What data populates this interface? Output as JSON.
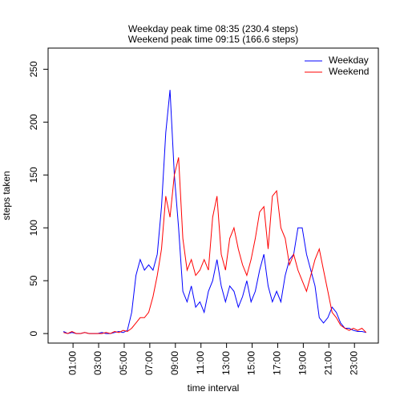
{
  "chart_data": {
    "type": "line",
    "title": "Weekday peak time 08:35 (230.4 steps)",
    "subtitle": "Weekend peak time 09:15 (166.6 steps)",
    "xlabel": "time interval",
    "ylabel": "steps taken",
    "x": [
      15,
      35,
      55,
      75,
      95,
      115,
      135,
      155,
      175,
      195,
      215,
      235,
      255,
      275,
      295,
      315,
      335,
      355,
      375,
      395,
      415,
      435,
      455,
      475,
      495,
      515,
      535,
      555,
      575,
      595,
      615,
      635,
      655,
      675,
      695,
      715,
      735,
      755,
      775,
      795,
      815,
      835,
      855,
      875,
      895,
      915,
      935,
      955,
      975,
      995,
      1015,
      1035,
      1055,
      1075,
      1095,
      1115,
      1135,
      1155,
      1175,
      1195,
      1215,
      1235,
      1255,
      1275,
      1295,
      1315,
      1335,
      1355,
      1375,
      1395,
      1415,
      1435
    ],
    "series": [
      {
        "name": "Weekday",
        "color": "#0000ff",
        "values": [
          2,
          0,
          1,
          0,
          0,
          1,
          0,
          0,
          0,
          1,
          0,
          0,
          1,
          2,
          1,
          3,
          20,
          55,
          70,
          60,
          65,
          60,
          75,
          120,
          190,
          230.4,
          150,
          100,
          40,
          30,
          45,
          25,
          30,
          20,
          40,
          50,
          70,
          45,
          30,
          45,
          40,
          25,
          35,
          50,
          30,
          40,
          60,
          75,
          45,
          30,
          40,
          30,
          55,
          70,
          75,
          100,
          100,
          75,
          60,
          45,
          15,
          10,
          15,
          25,
          20,
          10,
          5,
          5,
          3,
          2,
          2,
          1
        ]
      },
      {
        "name": "Weekend",
        "color": "#ff0000",
        "values": [
          1,
          0,
          2,
          0,
          0,
          1,
          0,
          0,
          0,
          0,
          1,
          0,
          2,
          1,
          3,
          2,
          5,
          10,
          15,
          15,
          20,
          35,
          55,
          80,
          130,
          110,
          150,
          166.6,
          90,
          60,
          70,
          55,
          60,
          70,
          60,
          110,
          130,
          75,
          60,
          90,
          100,
          80,
          65,
          55,
          70,
          90,
          115,
          120,
          80,
          130,
          135,
          100,
          90,
          65,
          75,
          60,
          50,
          40,
          55,
          70,
          80,
          60,
          40,
          20,
          15,
          8,
          5,
          3,
          5,
          3,
          5,
          1
        ]
      }
    ],
    "xlim": [
      -57,
      1492
    ],
    "xticks": [
      {
        "value": 60,
        "label": "01:00"
      },
      {
        "value": 180,
        "label": "03:00"
      },
      {
        "value": 300,
        "label": "05:00"
      },
      {
        "value": 420,
        "label": "07:00"
      },
      {
        "value": 540,
        "label": "09:00"
      },
      {
        "value": 660,
        "label": "11:00"
      },
      {
        "value": 780,
        "label": "13:00"
      },
      {
        "value": 900,
        "label": "15:00"
      },
      {
        "value": 1020,
        "label": "17:00"
      },
      {
        "value": 1140,
        "label": "19:00"
      },
      {
        "value": 1260,
        "label": "21:00"
      },
      {
        "value": 1380,
        "label": "23:00"
      }
    ],
    "ylim": [
      -9,
      270
    ],
    "yticks": [
      0,
      50,
      100,
      150,
      200,
      250
    ],
    "legend": "topright"
  }
}
